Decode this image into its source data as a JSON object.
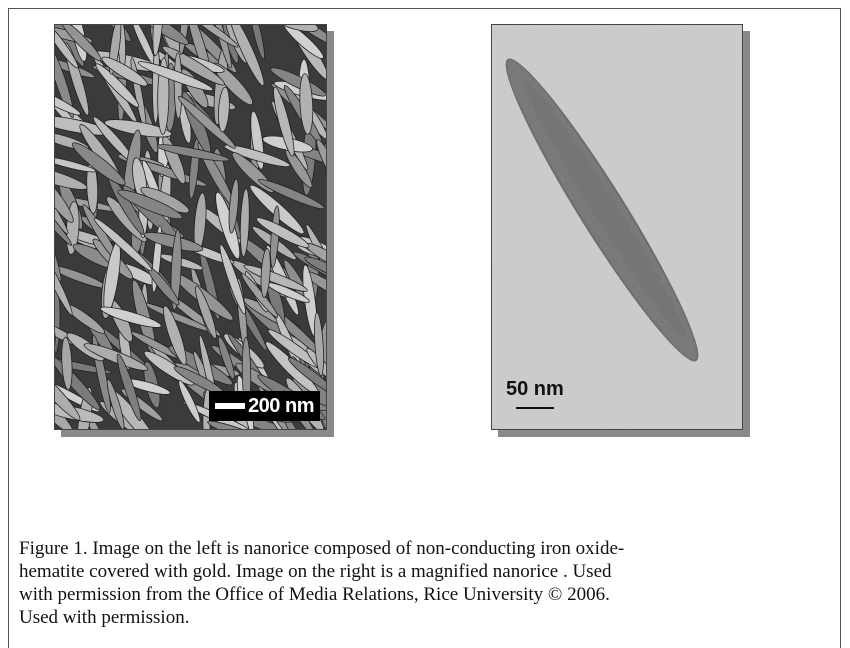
{
  "figure": {
    "left_scale_label": "200 nm",
    "right_scale_label": "50 nm",
    "caption_lines": [
      "Figure 1. Image on the left is nanorice composed of non-conducting iron oxide-",
      "hematite covered with gold. Image on the right is a magnified nanorice .  Used",
      "with permission from the Office of Media Relations, Rice University © 2006.",
      "Used with permission."
    ]
  }
}
